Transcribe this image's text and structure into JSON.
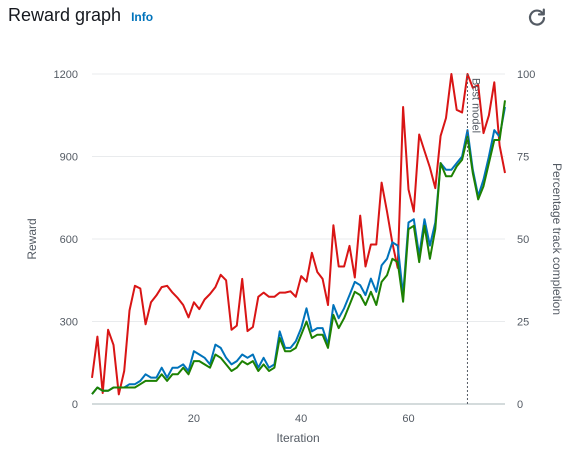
{
  "header": {
    "title": "Reward graph",
    "info_label": "Info"
  },
  "icons": {
    "refresh": "refresh-icon"
  },
  "colors": {
    "reward": "#d91515",
    "blue": "#0073bb",
    "green": "#1d8102",
    "grid": "#e9ebed",
    "axis": "#545b64"
  },
  "chart_data": {
    "type": "line",
    "title": "",
    "xlabel": "Iteration",
    "ylabel": "Reward",
    "y2label": "Percentage track completion",
    "xlim": [
      1,
      78
    ],
    "ylim": [
      0,
      1200
    ],
    "y2lim": [
      0,
      100
    ],
    "xticks": [
      20,
      40,
      60
    ],
    "yticks": [
      0,
      300,
      600,
      900,
      1200
    ],
    "y2ticks": [
      0,
      25,
      50,
      75,
      100
    ],
    "grid": true,
    "annotation": {
      "x": 71,
      "label": "Best model"
    },
    "series": [
      {
        "axis": "left",
        "color": "#d91515",
        "x": [
          1,
          2,
          3,
          4,
          5,
          6,
          7,
          8,
          9,
          10,
          11,
          12,
          13,
          14,
          15,
          16,
          17,
          18,
          19,
          20,
          21,
          22,
          23,
          24,
          25,
          26,
          27,
          28,
          29,
          30,
          31,
          32,
          33,
          34,
          35,
          36,
          37,
          38,
          39,
          40,
          41,
          42,
          43,
          44,
          45,
          46,
          47,
          48,
          49,
          50,
          51,
          52,
          53,
          54,
          55,
          56,
          57,
          58,
          59,
          60,
          61,
          62,
          63,
          64,
          65,
          66,
          67,
          68,
          69,
          70,
          71,
          72,
          73,
          74,
          75,
          76,
          77,
          78
        ],
        "values": [
          95,
          245,
          40,
          270,
          215,
          35,
          120,
          340,
          430,
          420,
          290,
          370,
          395,
          425,
          430,
          405,
          385,
          360,
          315,
          370,
          345,
          380,
          400,
          425,
          470,
          450,
          270,
          285,
          455,
          265,
          280,
          390,
          405,
          390,
          390,
          405,
          405,
          410,
          390,
          465,
          445,
          550,
          480,
          455,
          360,
          650,
          500,
          500,
          575,
          460,
          685,
          500,
          580,
          580,
          805,
          700,
          585,
          495,
          1080,
          780,
          700,
          980,
          920,
          860,
          785,
          975,
          1040,
          1200,
          1070,
          1060,
          1200,
          1150,
          1160,
          985,
          1050,
          1170,
          940,
          840
        ]
      },
      {
        "axis": "right",
        "color": "#0073bb",
        "x": [
          1,
          2,
          3,
          4,
          5,
          6,
          7,
          8,
          9,
          10,
          11,
          12,
          13,
          14,
          15,
          16,
          17,
          18,
          19,
          20,
          21,
          22,
          23,
          24,
          25,
          26,
          27,
          28,
          29,
          30,
          31,
          32,
          33,
          34,
          35,
          36,
          37,
          38,
          39,
          40,
          41,
          42,
          43,
          44,
          45,
          46,
          47,
          48,
          49,
          50,
          51,
          52,
          53,
          54,
          55,
          56,
          57,
          58,
          59,
          60,
          61,
          62,
          63,
          64,
          65,
          66,
          67,
          68,
          69,
          70,
          71,
          72,
          73,
          74,
          75,
          76,
          77,
          78
        ],
        "values": [
          3,
          5,
          4,
          4,
          5,
          5,
          5,
          6,
          6,
          7,
          9,
          8,
          8,
          11,
          8,
          11,
          11,
          12,
          10,
          16,
          15,
          14,
          12,
          18,
          17,
          14,
          12,
          13,
          15,
          14,
          15,
          11,
          14,
          11,
          12,
          22,
          17,
          17,
          19,
          23,
          29,
          22,
          23,
          23,
          18,
          30,
          26,
          29,
          33,
          37,
          36,
          33,
          38,
          34,
          42,
          44,
          49,
          48,
          33,
          55,
          56,
          45,
          56,
          48,
          55,
          73,
          71,
          71,
          73,
          75,
          83,
          71,
          63,
          68,
          75,
          83,
          81,
          90
        ]
      },
      {
        "axis": "right",
        "color": "#1d8102",
        "x": [
          1,
          2,
          3,
          4,
          5,
          6,
          7,
          8,
          9,
          10,
          11,
          12,
          13,
          14,
          15,
          16,
          17,
          18,
          19,
          20,
          21,
          22,
          23,
          24,
          25,
          26,
          27,
          28,
          29,
          30,
          31,
          32,
          33,
          34,
          35,
          36,
          37,
          38,
          39,
          40,
          41,
          42,
          43,
          44,
          45,
          46,
          47,
          48,
          49,
          50,
          51,
          52,
          53,
          54,
          55,
          56,
          57,
          58,
          59,
          60,
          61,
          62,
          63,
          64,
          65,
          66,
          67,
          68,
          69,
          70,
          71,
          72,
          73,
          74,
          75,
          76,
          77,
          78
        ],
        "values": [
          3,
          5,
          4,
          4,
          5,
          5,
          5,
          5,
          5,
          6,
          7,
          7,
          7,
          9,
          7,
          9,
          9,
          11,
          9,
          13,
          13,
          12,
          11,
          15,
          14,
          12,
          10,
          11,
          13,
          12,
          13,
          10,
          12,
          10,
          11,
          20,
          16,
          16,
          17,
          21,
          25,
          20,
          21,
          21,
          17,
          27,
          23,
          26,
          30,
          34,
          33,
          30,
          34,
          30,
          37,
          39,
          44,
          43,
          31,
          53,
          54,
          43,
          54,
          44,
          53,
          73,
          69,
          69,
          72,
          74,
          81,
          70,
          62,
          66,
          73,
          80,
          80,
          92
        ]
      }
    ]
  }
}
